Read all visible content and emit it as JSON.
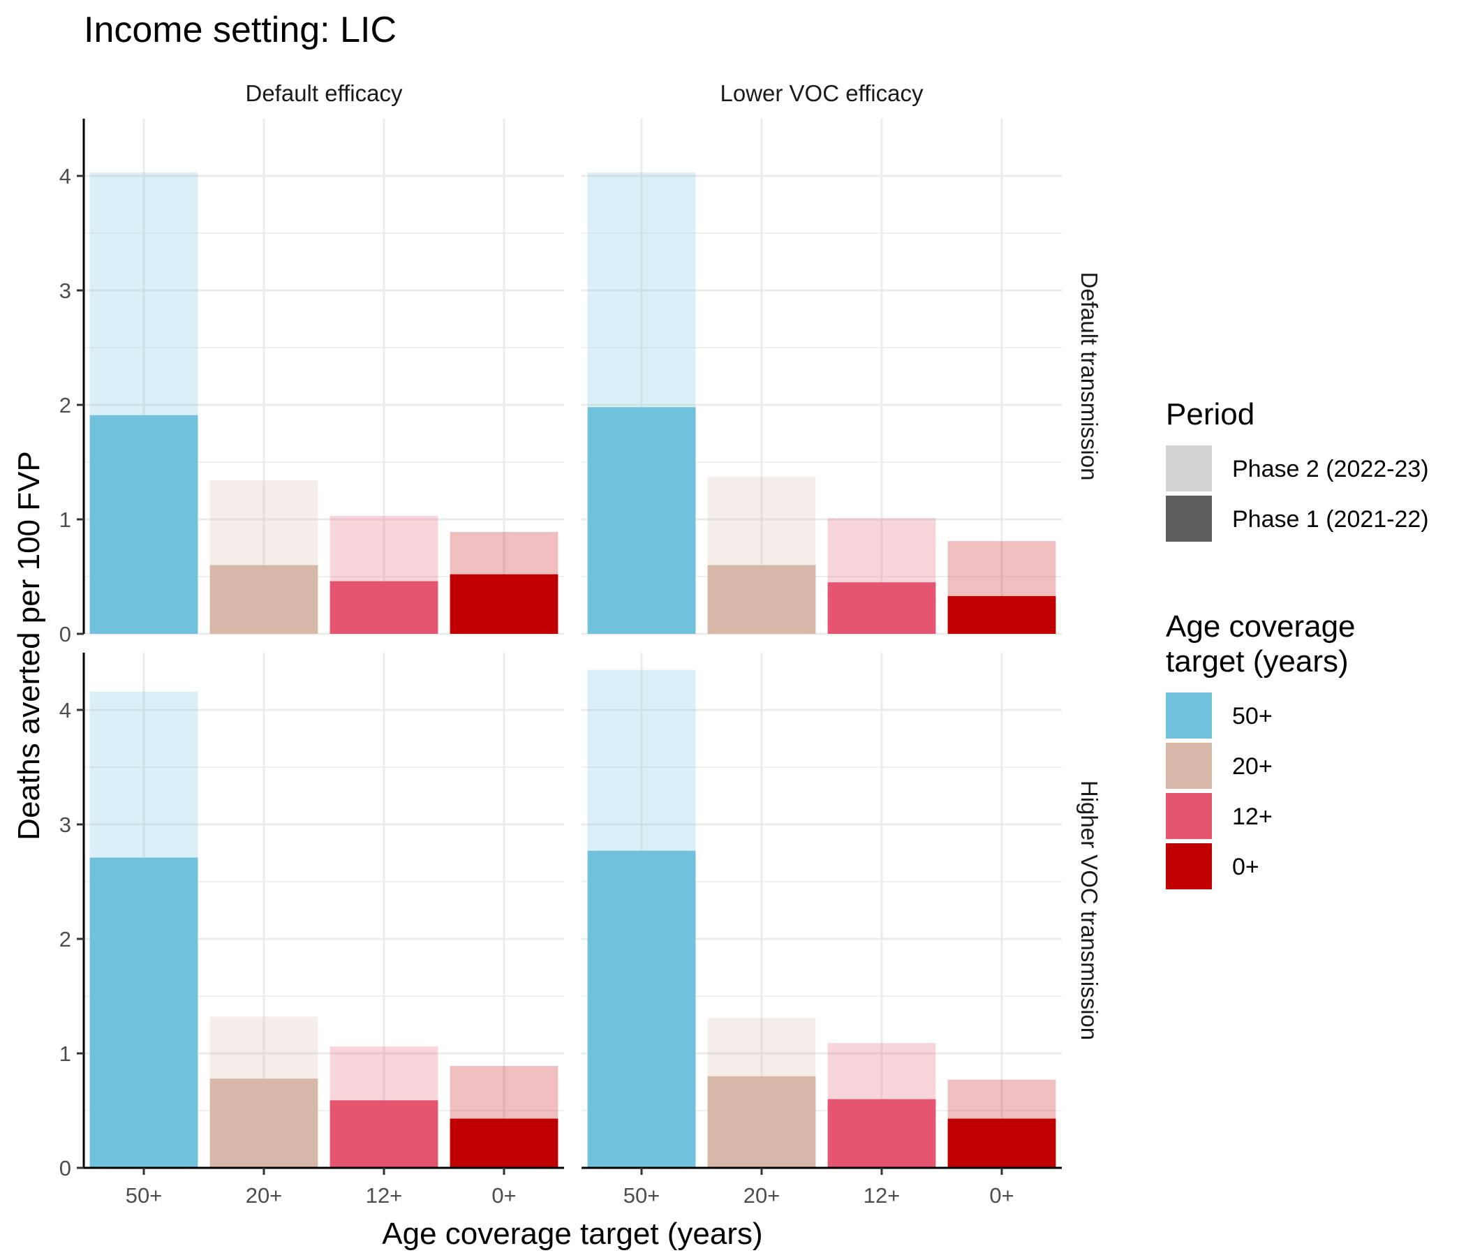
{
  "chart_data": {
    "type": "bar",
    "title": "Income setting: LIC",
    "xlabel": "Age coverage target (years)",
    "ylabel": "Deaths averted per 100 FVP",
    "ylim": [
      0,
      4.5
    ],
    "yticks": [
      0,
      1,
      2,
      3,
      4
    ],
    "categories": [
      "50+",
      "20+",
      "12+",
      "0+"
    ],
    "facet_columns": [
      "Default efficacy",
      "Lower VOC efficacy"
    ],
    "facet_rows": [
      "Default transmission",
      "Higher VOC transmission"
    ],
    "colors": {
      "50+": "#70C1DB",
      "20+": "#D7B8A8",
      "12+": "#E55570",
      "0+": "#C00000",
      "grid": "#EBEBEB",
      "axis": "#000000",
      "tick_label": "#4D4D4D"
    },
    "panels": [
      {
        "row": 0,
        "col": 0,
        "phase1": [
          1.91,
          0.6,
          0.46,
          0.52
        ],
        "total": [
          4.03,
          1.34,
          1.03,
          0.89
        ]
      },
      {
        "row": 0,
        "col": 1,
        "phase1": [
          1.98,
          0.6,
          0.45,
          0.33
        ],
        "total": [
          4.03,
          1.37,
          1.01,
          0.81
        ]
      },
      {
        "row": 1,
        "col": 0,
        "phase1": [
          2.71,
          0.78,
          0.59,
          0.43
        ],
        "total": [
          4.16,
          1.32,
          1.06,
          0.89
        ]
      },
      {
        "row": 1,
        "col": 1,
        "phase1": [
          2.77,
          0.8,
          0.6,
          0.43
        ],
        "total": [
          4.35,
          1.31,
          1.09,
          0.77
        ]
      }
    ],
    "legend": {
      "position": "right",
      "period_title": "Period",
      "period_items": [
        {
          "label": "Phase 2 (2022-23)",
          "color": "#D3D3D3"
        },
        {
          "label": "Phase 1 (2021-22)",
          "color": "#5E5E5E"
        }
      ],
      "age_title_line1": "Age coverage",
      "age_title_line2": "target (years)",
      "age_items": [
        {
          "label": "50+",
          "color": "#70C1DB"
        },
        {
          "label": "20+",
          "color": "#D7B8A8"
        },
        {
          "label": "12+",
          "color": "#E55570"
        },
        {
          "label": "0+",
          "color": "#C00000"
        }
      ]
    }
  }
}
